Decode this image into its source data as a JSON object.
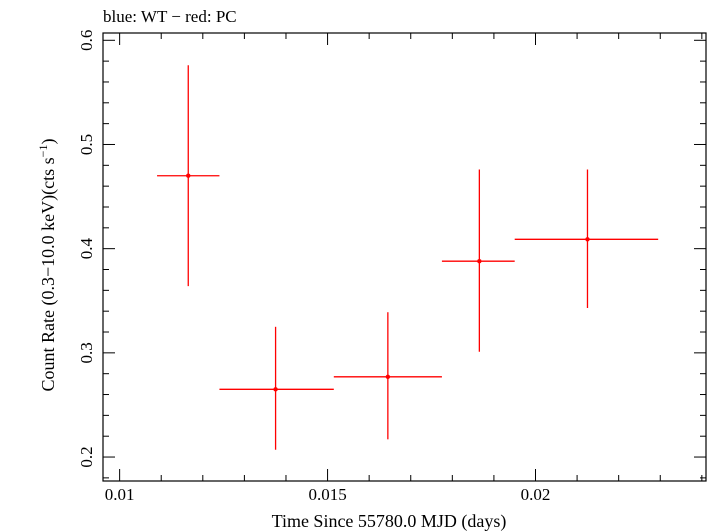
{
  "chart_data": {
    "type": "scatter",
    "title": "blue: WT − red: PC",
    "xlabel": "Time Since 55780.0 MJD (days)",
    "ylabel_main": "Count Rate (0.3−10.0 keV)(cts s",
    "ylabel_sup": "−1",
    "ylabel_end": ")",
    "xlim": [
      0.0096,
      0.0241
    ],
    "ylim": [
      0.177,
      0.607
    ],
    "x_ticks": [
      0.01,
      0.015,
      0.02
    ],
    "x_tick_labels": [
      "0.01",
      "0.015",
      "0.02"
    ],
    "y_ticks": [
      0.2,
      0.3,
      0.4,
      0.5,
      0.6
    ],
    "y_tick_labels": [
      "0.2",
      "0.3",
      "0.4",
      "0.5",
      "0.6"
    ],
    "series": [
      {
        "color": "#ff0000",
        "points": [
          {
            "x": 0.01165,
            "xlo": 0.0109,
            "xhi": 0.0124,
            "y": 0.47,
            "ylo": 0.364,
            "yhi": 0.576
          },
          {
            "x": 0.01375,
            "xlo": 0.0124,
            "xhi": 0.01515,
            "y": 0.265,
            "ylo": 0.207,
            "yhi": 0.325
          },
          {
            "x": 0.01645,
            "xlo": 0.01515,
            "xhi": 0.01775,
            "y": 0.277,
            "ylo": 0.217,
            "yhi": 0.339
          },
          {
            "x": 0.01865,
            "xlo": 0.01775,
            "xhi": 0.0195,
            "y": 0.388,
            "ylo": 0.301,
            "yhi": 0.476
          },
          {
            "x": 0.02125,
            "xlo": 0.0195,
            "xhi": 0.02295,
            "y": 0.409,
            "ylo": 0.343,
            "yhi": 0.476
          }
        ]
      }
    ]
  }
}
